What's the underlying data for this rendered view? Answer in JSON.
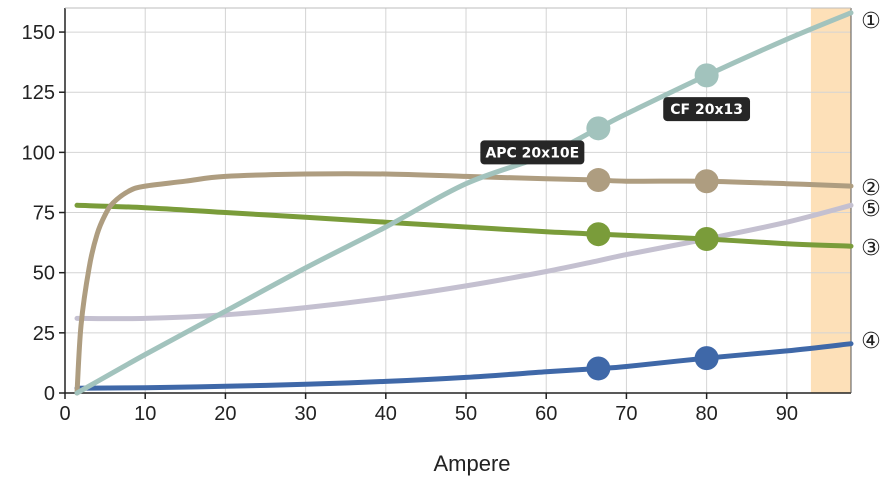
{
  "chart_data": {
    "type": "line",
    "xlabel": "Ampere",
    "ylabel": "",
    "xlim": [
      0,
      98
    ],
    "ylim": [
      0,
      160
    ],
    "x_ticks": [
      "0",
      "10",
      "20",
      "30",
      "40",
      "50",
      "60",
      "70",
      "80",
      "90"
    ],
    "y_ticks": [
      "0",
      "25",
      "50",
      "75",
      "100",
      "125",
      "150"
    ],
    "grid": true,
    "highlight_band": {
      "x_from": 93,
      "x_to": 98,
      "color": "#fde0b8"
    },
    "series": [
      {
        "name": "①",
        "color": "#a2c3bd",
        "points": [
          [
            1.5,
            0
          ],
          [
            10,
            16
          ],
          [
            20,
            34
          ],
          [
            30,
            52
          ],
          [
            40,
            69
          ],
          [
            50,
            87
          ],
          [
            60,
            99
          ],
          [
            66.5,
            110
          ],
          [
            70,
            116
          ],
          [
            80,
            132
          ],
          [
            90,
            147
          ],
          [
            98,
            158
          ]
        ]
      },
      {
        "name": "②",
        "color": "#ae9d80",
        "points": [
          [
            1.5,
            0
          ],
          [
            2,
            28
          ],
          [
            3,
            52
          ],
          [
            4,
            66
          ],
          [
            5,
            74
          ],
          [
            6,
            79
          ],
          [
            8,
            84
          ],
          [
            10,
            86
          ],
          [
            15,
            88
          ],
          [
            20,
            90
          ],
          [
            30,
            91
          ],
          [
            40,
            91
          ],
          [
            50,
            90
          ],
          [
            60,
            89
          ],
          [
            66.5,
            88.5
          ],
          [
            70,
            88
          ],
          [
            80,
            88
          ],
          [
            90,
            87
          ],
          [
            98,
            86
          ]
        ]
      },
      {
        "name": "③",
        "color": "#7a9c3a",
        "points": [
          [
            1.5,
            78
          ],
          [
            10,
            77
          ],
          [
            20,
            75
          ],
          [
            30,
            73
          ],
          [
            40,
            71
          ],
          [
            50,
            69
          ],
          [
            60,
            67
          ],
          [
            66.5,
            66
          ],
          [
            70,
            65.5
          ],
          [
            80,
            64
          ],
          [
            90,
            62
          ],
          [
            98,
            61
          ]
        ]
      },
      {
        "name": "④",
        "color": "#3f68a8",
        "points": [
          [
            1.5,
            2
          ],
          [
            10,
            2.2
          ],
          [
            20,
            2.8
          ],
          [
            30,
            3.6
          ],
          [
            40,
            4.8
          ],
          [
            50,
            6.5
          ],
          [
            60,
            8.8
          ],
          [
            66.5,
            10.2
          ],
          [
            70,
            11
          ],
          [
            80,
            14.5
          ],
          [
            90,
            17.5
          ],
          [
            98,
            20.5
          ]
        ]
      },
      {
        "name": "⑤",
        "color": "#c4c0d0",
        "points": [
          [
            1.5,
            31
          ],
          [
            10,
            31
          ],
          [
            20,
            32.5
          ],
          [
            30,
            35.5
          ],
          [
            40,
            39.5
          ],
          [
            50,
            44.5
          ],
          [
            60,
            50.5
          ],
          [
            66.5,
            55
          ],
          [
            70,
            57.5
          ],
          [
            80,
            64
          ],
          [
            90,
            71
          ],
          [
            98,
            78
          ]
        ]
      }
    ],
    "highlights": [
      {
        "series": 0,
        "x": 66.5,
        "y": 110
      },
      {
        "series": 0,
        "x": 80,
        "y": 132
      },
      {
        "series": 1,
        "x": 66.5,
        "y": 88.5
      },
      {
        "series": 1,
        "x": 80,
        "y": 88
      },
      {
        "series": 2,
        "x": 66.5,
        "y": 66
      },
      {
        "series": 2,
        "x": 80,
        "y": 64
      },
      {
        "series": 3,
        "x": 66.5,
        "y": 10.2
      },
      {
        "series": 3,
        "x": 80,
        "y": 14.5
      }
    ],
    "annotations": [
      {
        "text": "APC 20x10E",
        "x": 66.5,
        "y": 100
      },
      {
        "text": "CF 20x13",
        "x": 80,
        "y": 118
      }
    ]
  }
}
